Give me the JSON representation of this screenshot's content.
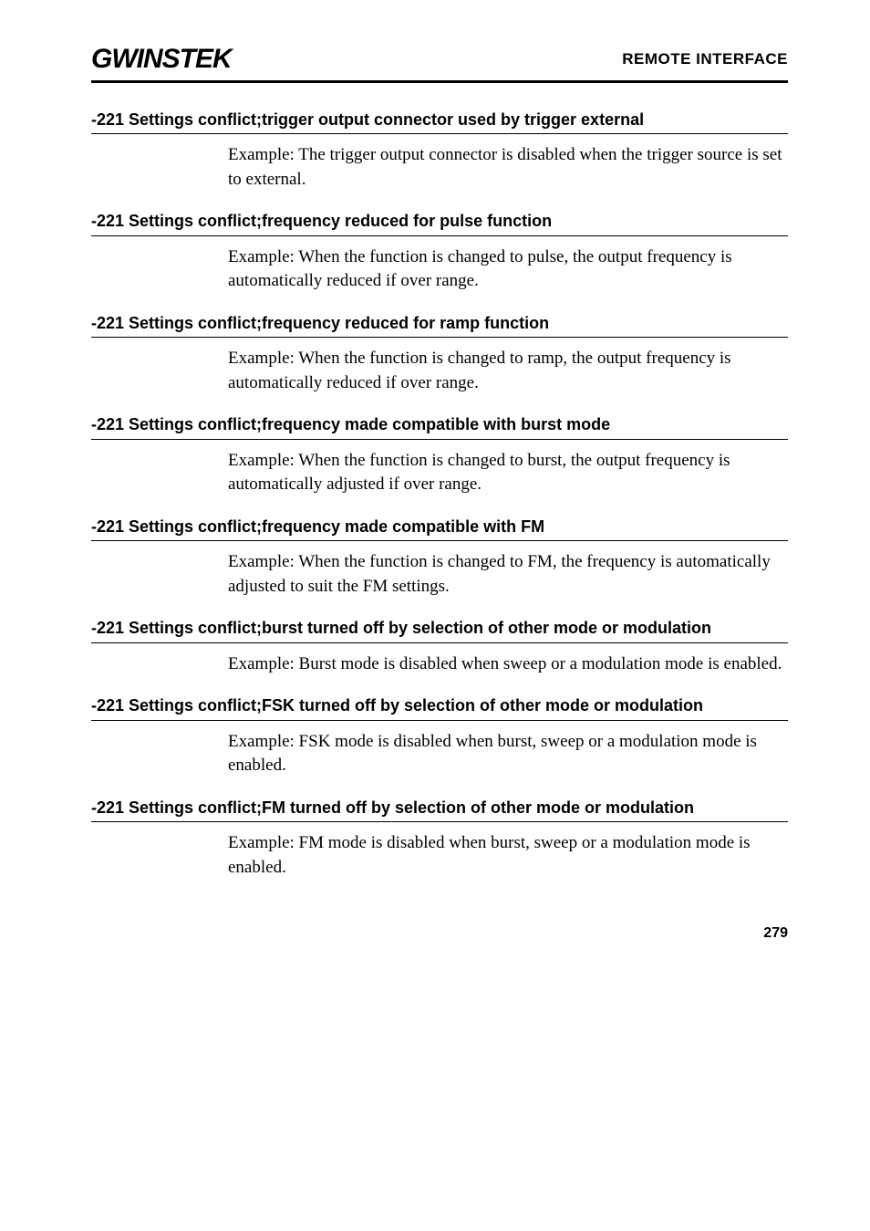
{
  "header": {
    "logo": "GWINSTEK",
    "breadcrumb": "REMOTE INTERFACE"
  },
  "sections": [
    {
      "heading": "-221 Settings conflict;trigger output connector used by trigger external",
      "body": "Example: The trigger output connector is disabled when the trigger source is set to external."
    },
    {
      "heading": "-221 Settings conflict;frequency reduced for pulse function",
      "body": "Example: When the function is changed to pulse, the output frequency is automatically reduced if over range."
    },
    {
      "heading": "-221 Settings conflict;frequency reduced for ramp function",
      "body": "Example: When the function is changed to ramp, the output frequency is automatically reduced if over range."
    },
    {
      "heading": "-221 Settings conflict;frequency made compatible with burst mode",
      "body": "Example: When the function is changed to burst, the output frequency is automatically adjusted if over range."
    },
    {
      "heading": "-221 Settings conflict;frequency made compatible with FM",
      "body": "Example: When the function is changed to FM, the frequency is automatically adjusted to suit the FM settings."
    },
    {
      "heading": "-221 Settings conflict;burst turned off by selection of other mode or modulation",
      "body": "Example: Burst mode is disabled when sweep or a modulation mode is enabled."
    },
    {
      "heading": "-221 Settings conflict;FSK turned off by selection of other mode or modulation",
      "body": "Example: FSK mode is disabled when burst, sweep or a modulation mode is enabled."
    },
    {
      "heading": "-221 Settings conflict;FM turned off by selection of other mode or modulation",
      "body": "Example: FM mode is disabled when burst, sweep or a modulation mode is enabled."
    }
  ],
  "page_number": "279"
}
